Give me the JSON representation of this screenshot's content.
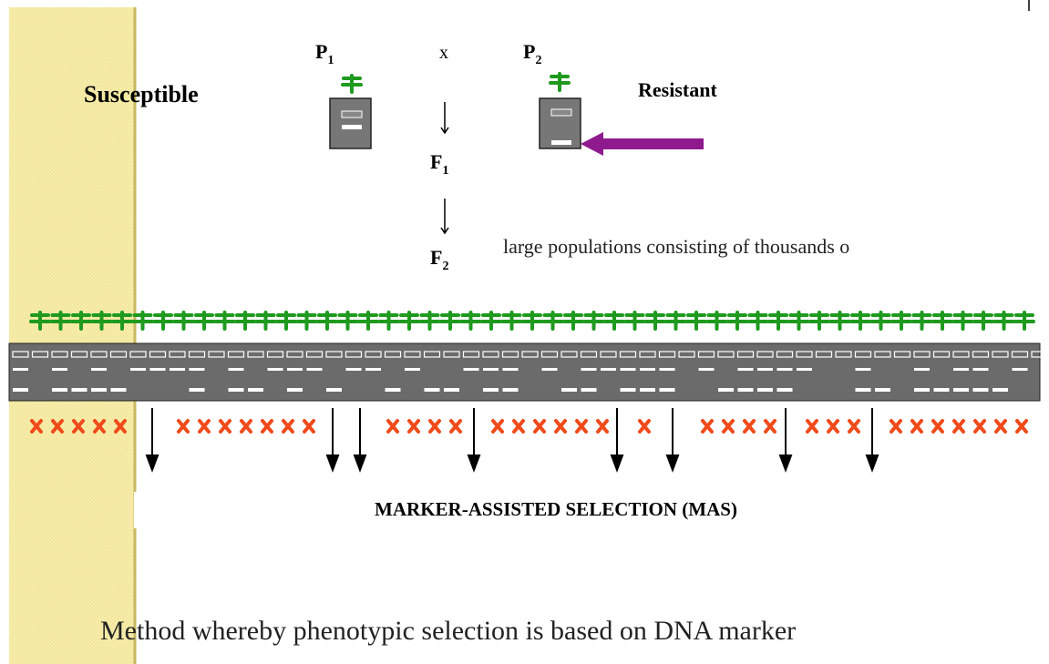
{
  "parents": {
    "p1": {
      "label": "P",
      "subscript": "1"
    },
    "cross": "x",
    "p2": {
      "label": "P",
      "subscript": "2"
    }
  },
  "susceptible": "Susceptible",
  "resistant": "Resistant",
  "generations": [
    {
      "label": "F",
      "subscript": "1"
    },
    {
      "label": "F",
      "subscript": "2"
    }
  ],
  "population_note": "large populations consisting of thousands o",
  "mas_title": "MARKER-ASSISTED SELECTION (MAS)",
  "definition": "Method whereby phenotypic selection is based on DNA marker"
}
